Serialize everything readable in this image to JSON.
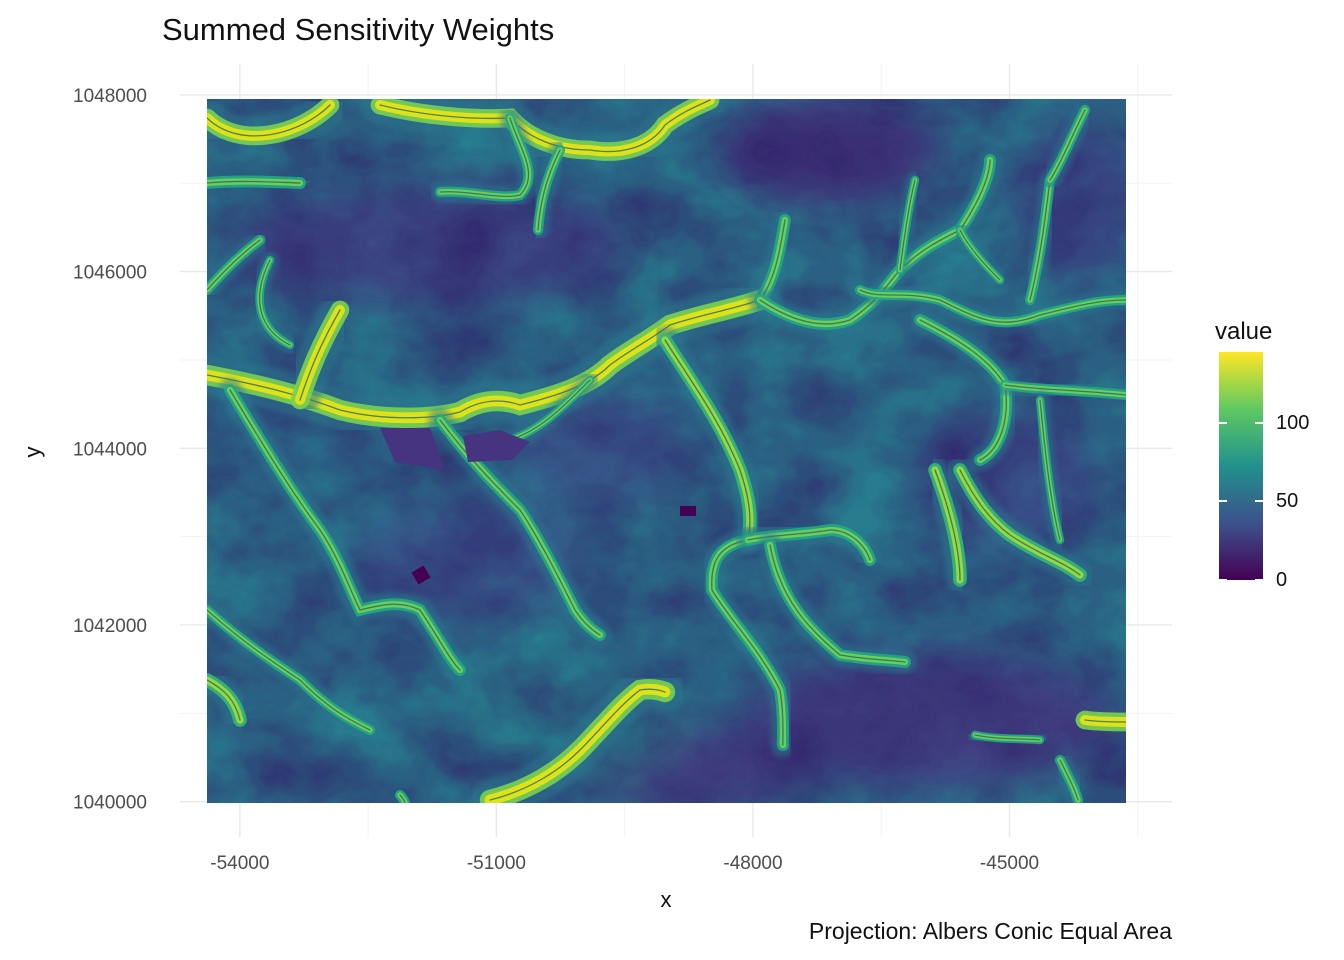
{
  "title": "Summed Sensitivity Weights",
  "caption": "Projection: Albers Conic Equal Area",
  "x_axis": {
    "label": "x",
    "ticks": [
      "-54000",
      "-51000",
      "-48000",
      "-45000"
    ],
    "tick_values": [
      -54000,
      -51000,
      -48000,
      -45000
    ]
  },
  "y_axis": {
    "label": "y",
    "ticks": [
      "1040000",
      "1042000",
      "1044000",
      "1046000",
      "1048000"
    ],
    "tick_values": [
      1040000,
      1042000,
      1044000,
      1046000,
      1048000
    ]
  },
  "legend": {
    "title": "value",
    "labels": [
      "0",
      "50",
      "100"
    ],
    "values": [
      0,
      50,
      100
    ],
    "range": [
      0,
      145
    ],
    "colormap": "viridis",
    "colors": [
      "#440154",
      "#3b528b",
      "#21918c",
      "#5ec962",
      "#fde725"
    ]
  },
  "chart_data": {
    "type": "heatmap",
    "title": "Summed Sensitivity Weights",
    "xlabel": "x",
    "ylabel": "y",
    "xlim": [
      -54700,
      -43100
    ],
    "ylim": [
      1039600,
      1048350
    ],
    "value_range": [
      0,
      145
    ],
    "colormap": "viridis",
    "legend_title": "value",
    "legend_placement": "right",
    "grid": true,
    "caption": "Projection: Albers Conic Equal Area"
  }
}
